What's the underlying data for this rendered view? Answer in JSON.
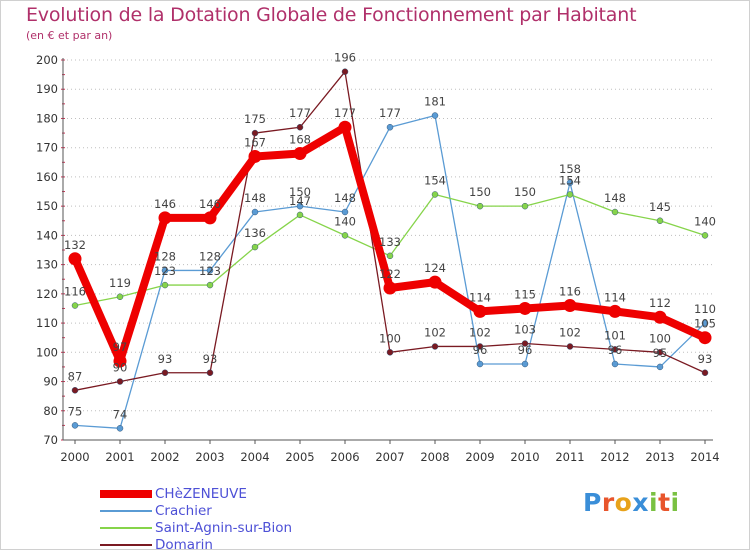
{
  "header": {
    "title": "Evolution de la Dotation Globale de Fonctionnement par Habitant",
    "subtitle": "(en € et par an)"
  },
  "logo": {
    "text": "Proxiti",
    "letter_colors": [
      "#3a8ed8",
      "#e8552c",
      "#e8a21a",
      "#3a8ed8",
      "#7ac142",
      "#e8552c",
      "#7ac142"
    ]
  },
  "chart_data": {
    "type": "line",
    "title": "Evolution de la Dotation Globale de Fonctionnement par Habitant",
    "subtitle": "(en € et par an)",
    "xlabel": "",
    "ylabel": "",
    "x": [
      "2000",
      "2001",
      "2002",
      "2003",
      "2004",
      "2005",
      "2006",
      "2007",
      "2008",
      "2009",
      "2010",
      "2011",
      "2012",
      "2013",
      "2014"
    ],
    "ylim": [
      70,
      200
    ],
    "yticks": [
      70,
      80,
      90,
      100,
      110,
      120,
      130,
      140,
      150,
      160,
      170,
      180,
      190,
      200
    ],
    "grid": "horizontal-dotted",
    "legend": "bottom-left",
    "series": [
      {
        "name": "CHèZENEUVE",
        "color": "#ee0000",
        "emphasis": true,
        "values": [
          132,
          97,
          146,
          146,
          167,
          168,
          177,
          122,
          124,
          114,
          115,
          116,
          114,
          112,
          105
        ],
        "labels": [
          "132",
          "97",
          "146",
          "146",
          "167",
          "168",
          "177",
          "122",
          "124",
          "114",
          "115",
          "116",
          "114",
          "112",
          "105"
        ]
      },
      {
        "name": "Crachier",
        "color": "#5a9bd4",
        "emphasis": false,
        "values": [
          75,
          74,
          128,
          128,
          148,
          150,
          148,
          177,
          181,
          96,
          96,
          158,
          96,
          95,
          110
        ],
        "labels": [
          "75",
          "74",
          "128",
          "128",
          "148",
          "150",
          "148",
          "177",
          "181",
          "96",
          "96",
          "158",
          "96",
          "95",
          "110"
        ]
      },
      {
        "name": "Saint-Agnin-sur-Bion",
        "color": "#86d44a",
        "emphasis": false,
        "values": [
          116,
          119,
          123,
          123,
          136,
          147,
          140,
          133,
          154,
          150,
          150,
          154,
          148,
          145,
          140
        ],
        "labels": [
          "116",
          "119",
          "123",
          "123",
          "136",
          "147",
          "140",
          "133",
          "154",
          "150",
          "150",
          "154",
          "148",
          "145",
          "140"
        ]
      },
      {
        "name": "Domarin",
        "color": "#7a1a22",
        "emphasis": false,
        "values": [
          87,
          90,
          93,
          93,
          175,
          177,
          196,
          100,
          102,
          102,
          103,
          102,
          101,
          100,
          93
        ],
        "labels": [
          "87",
          "90",
          "93",
          "93",
          "175",
          "177",
          "196",
          "100",
          "102",
          "102",
          "103",
          "102",
          "101",
          "100",
          "93"
        ]
      }
    ]
  }
}
